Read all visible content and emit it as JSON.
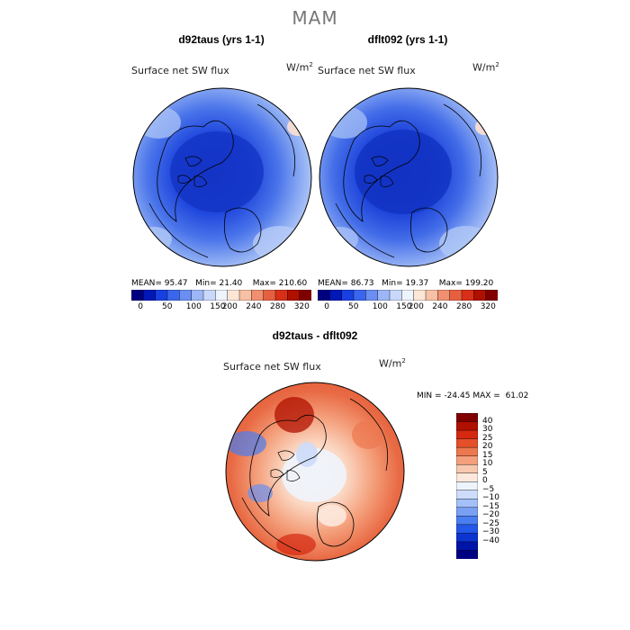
{
  "page": {
    "title": "MAM"
  },
  "colors": {
    "flux_scale": [
      "#000080",
      "#0018b8",
      "#1840e0",
      "#3a66ee",
      "#6a8ef2",
      "#9cb6f6",
      "#c8d8fa",
      "#eef4fc",
      "#fde6d6",
      "#f8c0a4",
      "#f09070",
      "#e66040",
      "#d83018",
      "#b01000",
      "#800000"
    ],
    "diff_scale": [
      "#000080",
      "#0014a8",
      "#0c34d0",
      "#2458e8",
      "#4a7ef0",
      "#7aa0f4",
      "#a4c0f8",
      "#cddcfa",
      "#eef4fc",
      "#fce8dc",
      "#f8c8ae",
      "#f4a07c",
      "#ec7850",
      "#e45028",
      "#d42810",
      "#b01000",
      "#800000"
    ],
    "land_outline": "#000000"
  },
  "chart_data": [
    {
      "type": "heatmap",
      "projection": "polar-stereographic-north",
      "title": "d92taus (yrs 1-1)",
      "variable": "Surface net SW flux",
      "units": "W/m",
      "units_exponent": "2",
      "stats": {
        "mean_label": "MEAN=",
        "mean": "95.47",
        "min_label": "Min=",
        "min": "21.40",
        "max_label": "Max=",
        "max": "210.60"
      },
      "colorbar": {
        "orientation": "horizontal",
        "ticks": [
          "0",
          "50",
          "100",
          "150",
          "200",
          "240",
          "280",
          "320"
        ]
      }
    },
    {
      "type": "heatmap",
      "projection": "polar-stereographic-north",
      "title": "dflt092 (yrs 1-1)",
      "variable": "Surface net SW flux",
      "units": "W/m",
      "units_exponent": "2",
      "stats": {
        "mean_label": "MEAN=",
        "mean": "86.73",
        "min_label": "Min=",
        "min": "19.37",
        "max_label": "Max=",
        "max": "199.20"
      },
      "colorbar": {
        "orientation": "horizontal",
        "ticks": [
          "0",
          "50",
          "100",
          "150",
          "200",
          "240",
          "280",
          "320"
        ]
      }
    },
    {
      "type": "heatmap",
      "projection": "polar-stereographic-north",
      "title": "d92taus - dflt092",
      "variable": "Surface net SW flux",
      "units": "W/m",
      "units_exponent": "2",
      "stats": {
        "min_label": "MIN =",
        "min": "-24.45",
        "max_label": "MAX =",
        "max": "61.02"
      },
      "colorbar": {
        "orientation": "vertical",
        "ticks": [
          "40",
          "30",
          "25",
          "20",
          "15",
          "10",
          "5",
          "0",
          "−5",
          "−10",
          "−15",
          "−20",
          "−25",
          "−30",
          "−40"
        ]
      }
    }
  ]
}
